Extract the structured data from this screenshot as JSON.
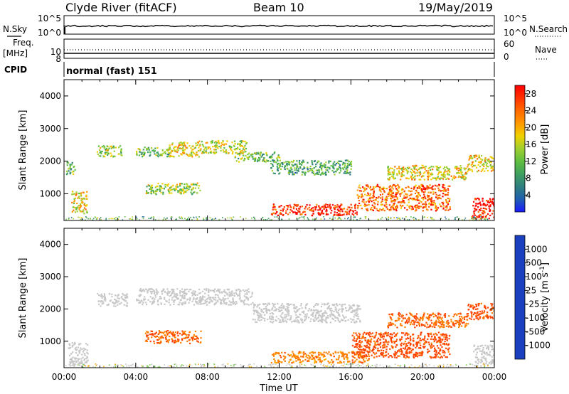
{
  "header": {
    "title": "Clyde River (fitACF)",
    "beam": "Beam 10",
    "date": "19/May/2019"
  },
  "noise_panel": {
    "left_label": "N.Sky",
    "right_label": "N.Search",
    "left_ticks": [
      "10^5",
      "10^0"
    ],
    "right_ticks": [
      "10^5",
      "10^0"
    ]
  },
  "freq_panel": {
    "left_label_1": "Freq.",
    "left_label_2": "[MHz]",
    "right_label": "Nave",
    "left_ticks": [
      "10",
      "8"
    ],
    "right_ticks": [
      "60",
      "0"
    ]
  },
  "cpid_panel": {
    "label": "CPID",
    "program": "normal (fast) 151"
  },
  "chart_data": [
    {
      "type": "heatmap",
      "title": "",
      "xlabel": "Time UT",
      "ylabel": "Slant Range [km]",
      "x_ticks": [
        "00:00",
        "04:00",
        "08:00",
        "12:00",
        "16:00",
        "20:00",
        "00:00"
      ],
      "x_range_hours": [
        0,
        24
      ],
      "y_ticks": [
        1000,
        2000,
        3000,
        4000
      ],
      "ylim": [
        180,
        4500
      ],
      "colorbar": {
        "label": "Power [dB]",
        "ticks": [
          "4",
          "8",
          "12",
          "16",
          "20",
          "24",
          "28"
        ],
        "range": [
          0,
          30
        ],
        "colors": [
          "#1a1aff",
          "#1f5fb0",
          "#2f7f7f",
          "#3f9f5f",
          "#5fbf3f",
          "#9fcf2f",
          "#f0d000",
          "#ff9900",
          "#ff6a00",
          "#ff3300",
          "#ff0000"
        ]
      },
      "features": [
        {
          "x": [
            0.4,
            1.3
          ],
          "y": [
            400,
            1100
          ],
          "value": 18
        },
        {
          "x": [
            0.1,
            0.6
          ],
          "y": [
            1600,
            2000
          ],
          "value": 12
        },
        {
          "x": [
            1.8,
            3.2
          ],
          "y": [
            2150,
            2500
          ],
          "value": 14
        },
        {
          "x": [
            4.0,
            6.0
          ],
          "y": [
            2150,
            2450
          ],
          "value": 12
        },
        {
          "x": [
            5.8,
            7.5
          ],
          "y": [
            2150,
            2600
          ],
          "value": 18
        },
        {
          "x": [
            7.5,
            10.2
          ],
          "y": [
            2250,
            2650
          ],
          "value": 16
        },
        {
          "x": [
            9.5,
            12.0
          ],
          "y": [
            2000,
            2300
          ],
          "value": 12
        },
        {
          "x": [
            11.5,
            16.0
          ],
          "y": [
            1600,
            2050
          ],
          "value": 10
        },
        {
          "x": [
            4.5,
            7.6
          ],
          "y": [
            1000,
            1350
          ],
          "value": 14
        },
        {
          "x": [
            11.5,
            16.3
          ],
          "y": [
            350,
            700
          ],
          "value": 28
        },
        {
          "x": [
            16.3,
            21.5
          ],
          "y": [
            500,
            1300
          ],
          "value": 24
        },
        {
          "x": [
            18.0,
            22.5
          ],
          "y": [
            1450,
            1900
          ],
          "value": 18
        },
        {
          "x": [
            22.5,
            24.0
          ],
          "y": [
            1700,
            2200
          ],
          "value": 18
        },
        {
          "x": [
            22.7,
            24.0
          ],
          "y": [
            250,
            900
          ],
          "value": 30
        }
      ]
    },
    {
      "type": "heatmap",
      "title": "",
      "xlabel": "Time UT",
      "ylabel": "Slant Range [km]",
      "x_ticks": [
        "00:00",
        "04:00",
        "08:00",
        "12:00",
        "16:00",
        "20:00",
        "00:00"
      ],
      "x_range_hours": [
        0,
        24
      ],
      "y_ticks": [
        1000,
        2000,
        3000,
        4000
      ],
      "ylim": [
        180,
        4500
      ],
      "colorbar": {
        "label": "Velocity [m s^-1]",
        "ticks": [
          "1000",
          "500",
          "100",
          "25",
          "-25",
          "-100",
          "-500",
          "-1000"
        ],
        "colors": [
          "#1a3fbf",
          "#2f6fa0",
          "#3f9f5f",
          "#6fcf3f",
          "#c8c8c8",
          "#ffb000",
          "#ff8000",
          "#ff4400",
          "#ff0000"
        ]
      },
      "features": [
        {
          "x": [
            0.2,
            1.3
          ],
          "y": [
            250,
            1000
          ],
          "value": 0
        },
        {
          "x": [
            1.8,
            3.5
          ],
          "y": [
            2100,
            2500
          ],
          "value": 0
        },
        {
          "x": [
            4.0,
            10.5
          ],
          "y": [
            2150,
            2650
          ],
          "value": 0
        },
        {
          "x": [
            10.5,
            16.5
          ],
          "y": [
            1600,
            2200
          ],
          "value": 0
        },
        {
          "x": [
            4.5,
            7.6
          ],
          "y": [
            950,
            1350
          ],
          "value": -300
        },
        {
          "x": [
            11.5,
            17.0
          ],
          "y": [
            350,
            700
          ],
          "value": -200
        },
        {
          "x": [
            16.0,
            21.5
          ],
          "y": [
            500,
            1300
          ],
          "value": -400
        },
        {
          "x": [
            18.0,
            22.5
          ],
          "y": [
            1450,
            1900
          ],
          "value": -300
        },
        {
          "x": [
            22.5,
            24.0
          ],
          "y": [
            1700,
            2200
          ],
          "value": -400
        },
        {
          "x": [
            22.8,
            24.0
          ],
          "y": [
            250,
            900
          ],
          "value": 0
        }
      ]
    }
  ],
  "colors": {
    "axis": "#000000",
    "background": "#ffffff"
  }
}
